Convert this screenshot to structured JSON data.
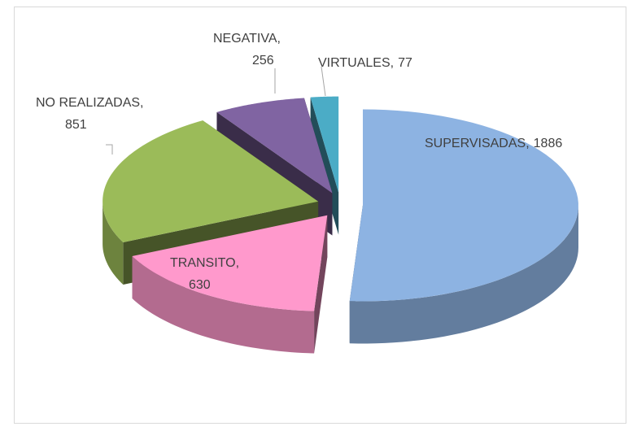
{
  "chart_data": {
    "type": "pie3d",
    "categories": [
      "SUPERVISADAS",
      "TRANSITO",
      "NO REALIZADAS",
      "NEGATIVA",
      "VIRTUALES"
    ],
    "values": [
      1886,
      630,
      851,
      256,
      77
    ],
    "colors": [
      "#8db3e2",
      "#ff99cc",
      "#9bbb59",
      "#8064a2",
      "#4bacc6"
    ],
    "label_separator": ","
  }
}
